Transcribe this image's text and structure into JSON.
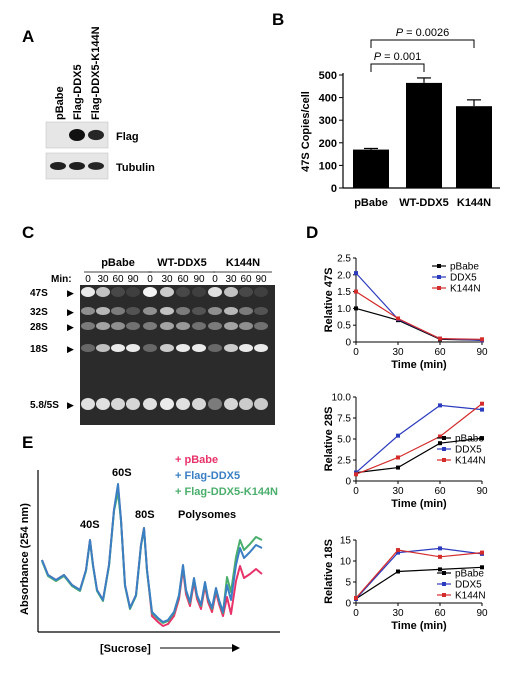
{
  "panels": {
    "A": "A",
    "B": "B",
    "C": "C",
    "D": "D",
    "E": "E"
  },
  "panel_A": {
    "lanes": [
      "pBabe",
      "Flag-DDX5",
      "Flag-DDX5-K144N"
    ],
    "rows": [
      "Flag",
      "Tubulin"
    ],
    "flag_intensity": [
      0.0,
      1.0,
      0.85
    ],
    "tubulin_intensity": [
      0.9,
      0.9,
      0.85
    ]
  },
  "panel_C": {
    "groups": [
      "pBabe",
      "WT-DDX5",
      "K144N"
    ],
    "min_label": "Min:",
    "timepoints": [
      "0",
      "30",
      "60",
      "90"
    ],
    "bands": [
      "47S",
      "32S",
      "28S",
      "18S",
      "5.8/5S"
    ],
    "arrow": "▶"
  },
  "panel_E": {
    "ylabel": "Absorbance (254 nm)",
    "xlabel": "[Sucrose]",
    "peak_labels": [
      "40S",
      "60S",
      "80S",
      "Polysomes"
    ],
    "legend": [
      "+ pBabe",
      "+ Flag-DDX5",
      "+ Flag-DDX5-K144N"
    ],
    "colors": [
      "#e8336a",
      "#3a7fc4",
      "#4aae6c"
    ]
  },
  "chart_data": [
    {
      "type": "bar",
      "panel": "B",
      "categories": [
        "pBabe",
        "WT-DDX5",
        "K144N"
      ],
      "values": [
        170,
        465,
        362
      ],
      "errors": [
        5,
        22,
        28
      ],
      "ylabel": "47S Copies/cell",
      "ylim": [
        0,
        500
      ],
      "yticks": [
        "0",
        "100",
        "200",
        "300",
        "400",
        "500"
      ],
      "annotations": [
        {
          "from": 0,
          "to": 1,
          "text": "P = 0.001"
        },
        {
          "from": 0,
          "to": 2,
          "text": "P = 0.0026"
        }
      ]
    },
    {
      "type": "line",
      "panel": "D",
      "x": [
        0,
        30,
        60,
        90
      ],
      "xlabel": "Time (min)",
      "ylabel": "Relative 47S",
      "ylim": [
        0,
        2.5
      ],
      "yticks": [
        "0",
        "0.5",
        "1.0",
        "1.5",
        "2.0",
        "2.5"
      ],
      "xticks": [
        "0",
        "30",
        "60",
        "90"
      ],
      "legend_position": "top-right",
      "series": [
        {
          "name": "pBabe",
          "values": [
            1.0,
            0.65,
            0.08,
            0.05
          ],
          "color": "#000000"
        },
        {
          "name": "DDX5",
          "values": [
            2.05,
            0.68,
            0.1,
            0.05
          ],
          "color": "#2b3bbd"
        },
        {
          "name": "K144N",
          "values": [
            1.5,
            0.7,
            0.1,
            0.08
          ],
          "color": "#d42b2b"
        }
      ]
    },
    {
      "type": "line",
      "panel": "D",
      "x": [
        0,
        30,
        60,
        90
      ],
      "xlabel": "Time (min)",
      "ylabel": "Relative 28S",
      "ylim": [
        0,
        10
      ],
      "yticks": [
        "0",
        "2.5",
        "5.0",
        "7.5",
        "10.0"
      ],
      "xticks": [
        "0",
        "30",
        "60",
        "90"
      ],
      "legend_position": "bottom-right",
      "series": [
        {
          "name": "pBabe",
          "values": [
            1.0,
            1.6,
            4.5,
            5.1
          ],
          "color": "#000000"
        },
        {
          "name": "DDX5",
          "values": [
            1.0,
            5.4,
            9.0,
            8.5
          ],
          "color": "#2b3bbd"
        },
        {
          "name": "K144N",
          "values": [
            0.8,
            2.8,
            5.3,
            9.2
          ],
          "color": "#d42b2b"
        }
      ]
    },
    {
      "type": "line",
      "panel": "D",
      "x": [
        0,
        30,
        60,
        90
      ],
      "xlabel": "Time (min)",
      "ylabel": "Relative 18S",
      "ylim": [
        0,
        15
      ],
      "yticks": [
        "0",
        "5",
        "10",
        "15"
      ],
      "xticks": [
        "0",
        "30",
        "60",
        "90"
      ],
      "legend_position": "bottom-right",
      "series": [
        {
          "name": "pBabe",
          "values": [
            1.0,
            7.5,
            8.0,
            8.5
          ],
          "color": "#000000"
        },
        {
          "name": "DDX5",
          "values": [
            1.0,
            12.0,
            13.0,
            11.7
          ],
          "color": "#2b3bbd"
        },
        {
          "name": "K144N",
          "values": [
            1.2,
            12.6,
            11.0,
            12.0
          ],
          "color": "#d42b2b"
        }
      ]
    }
  ]
}
